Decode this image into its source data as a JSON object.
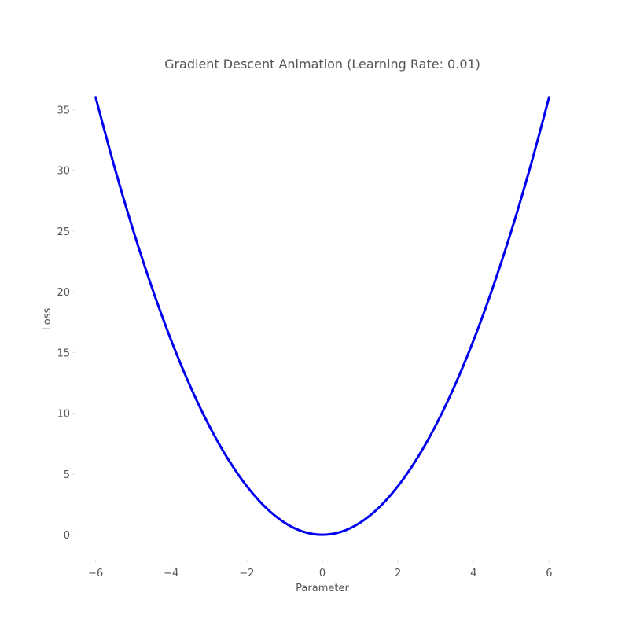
{
  "chart_data": {
    "type": "line",
    "title": "Gradient Descent Animation (Learning Rate: 0.01)",
    "xlabel": "Parameter",
    "ylabel": "Loss",
    "xlim": [
      -6.45,
      6.45
    ],
    "ylim": [
      -1.8,
      37.8
    ],
    "xticks": [
      -6,
      -4,
      -2,
      0,
      2,
      4,
      6
    ],
    "xtick_labels": [
      "−6",
      "−4",
      "−2",
      "0",
      "2",
      "4",
      "6"
    ],
    "yticks": [
      0,
      5,
      10,
      15,
      20,
      25,
      30,
      35
    ],
    "ytick_labels": [
      "0",
      "5",
      "10",
      "15",
      "20",
      "25",
      "30",
      "35"
    ],
    "grid": false,
    "series": [
      {
        "color": "#0000ee",
        "x": [
          -6,
          -5.5,
          -5,
          -4.5,
          -4,
          -3.5,
          -3,
          -2.5,
          -2,
          -1.5,
          -1,
          -0.5,
          0,
          0.5,
          1,
          1.5,
          2,
          2.5,
          3,
          3.5,
          4,
          4.5,
          5,
          5.5,
          6
        ],
        "y": [
          36,
          30.25,
          25,
          20.25,
          16,
          12.25,
          9,
          6.25,
          4,
          2.25,
          1,
          0.25,
          0,
          0.25,
          1,
          2.25,
          4,
          6.25,
          9,
          12.25,
          16,
          20.25,
          25,
          30.25,
          36
        ]
      }
    ]
  }
}
